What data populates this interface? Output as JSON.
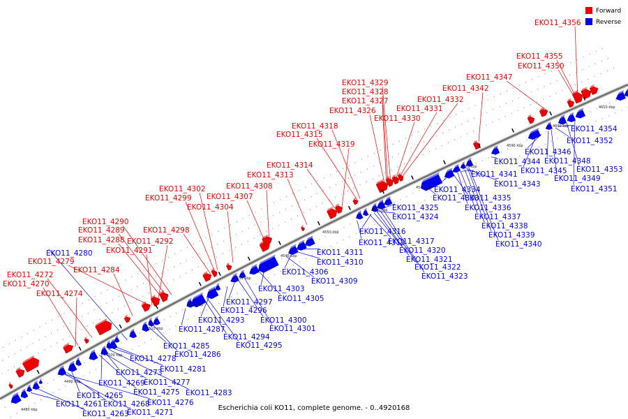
{
  "caption": "Escherichia coli KO11, complete genome. - 0..4920168",
  "legend": {
    "forward": {
      "label": "Forward",
      "color": "#ee0000"
    },
    "reverse": {
      "label": "Reverse",
      "color": "#0000ee"
    }
  },
  "ticks": [
    "4480 kbp",
    "4490 kbp",
    "4500 kbp",
    "4510 kbp",
    "4520 kbp",
    "4530 kbp",
    "4540 kbp",
    "4550 kbp",
    "4560 kbp",
    "4570 kbp",
    "4580 kbp",
    "4590 kbp",
    "4600 kbp",
    "4610 kbp"
  ],
  "forward_labels": [
    "EKO11_4356",
    "EKO11_4355",
    "EKO11_4350",
    "EKO11_4347",
    "EKO11_4342",
    "EKO11_4332",
    "EKO11_4331",
    "EKO11_4330",
    "EKO11_4329",
    "EKO11_4328",
    "EKO11_4327",
    "EKO11_4326",
    "EKO11_4318",
    "EKO11_4315",
    "EKO11_4319",
    "EKO11_4314",
    "EKO11_4313",
    "EKO11_4308",
    "EKO11_4307",
    "EKO11_4304",
    "EKO11_4302",
    "EKO11_4299",
    "EKO11_4298",
    "EKO11_4290",
    "EKO11_4289",
    "EKO11_4288",
    "EKO11_4292",
    "EKO11_4291",
    "EKO11_4279",
    "EKO11_4284",
    "EKO11_4272",
    "EKO11_4270",
    "EKO11_4274"
  ],
  "reverse_labels": [
    "EKO11_4354",
    "EKO11_4352",
    "EKO11_4346",
    "EKO11_4348",
    "EKO11_4353",
    "EKO11_4345",
    "EKO11_4349",
    "EKO11_4344",
    "EKO11_4351",
    "EKO11_4341",
    "EKO11_4343",
    "EKO11_4334",
    "EKO11_4335",
    "EKO11_4333",
    "EKO11_4336",
    "EKO11_4337",
    "EKO11_4338",
    "EKO11_4339",
    "EKO11_4340",
    "EKO11_4325",
    "EKO11_4324",
    "EKO11_4316",
    "EKO11_4312",
    "EKO11_4317",
    "EKO11_4320",
    "EKO11_4321",
    "EKO11_4322",
    "EKO11_4323",
    "EKO11_4311",
    "EKO11_4310",
    "EKO11_4306",
    "EKO11_4309",
    "EKO11_4303",
    "EKO11_4305",
    "EKO11_4297",
    "EKO11_4296",
    "EKO11_4293",
    "EKO11_4300",
    "EKO11_4301",
    "EKO11_4287",
    "EKO11_4294",
    "EKO11_4295",
    "EKO11_4285",
    "EKO11_4286",
    "EKO11_4280",
    "EKO11_4278",
    "EKO11_4281",
    "EKO11_4273",
    "EKO11_4269",
    "EKO11_4277",
    "EKO11_4275",
    "EKO11_4283",
    "EKO11_4265",
    "EKO11_4261",
    "EKO11_4268",
    "EKO11_4276",
    "EKO11_4263",
    "EKO11_4271"
  ]
}
